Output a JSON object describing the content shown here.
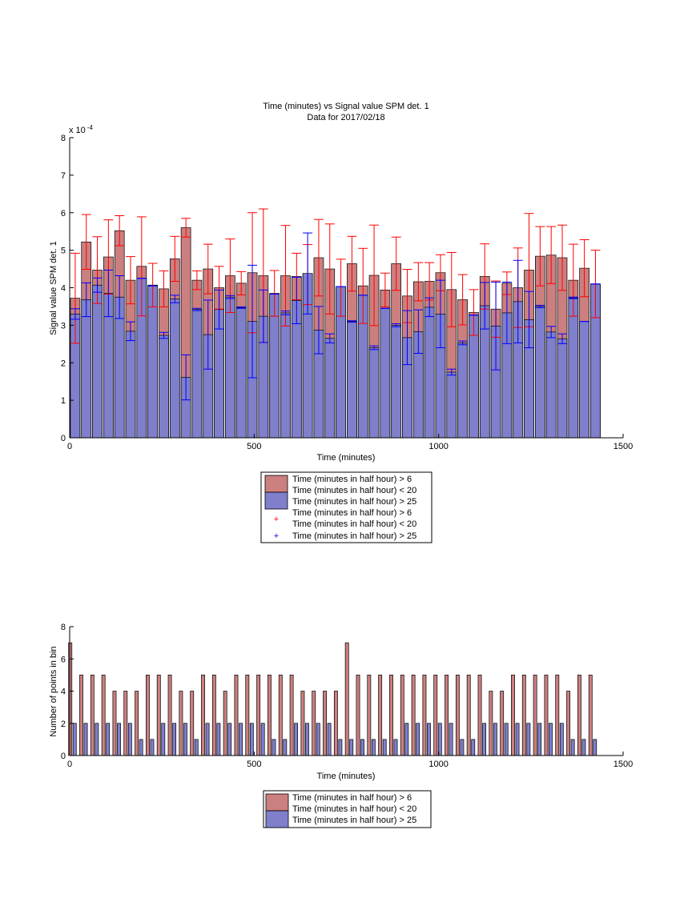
{
  "colors": {
    "red_bar": "#cc7f7f",
    "blue_bar": "#7f7fcc",
    "red_err": "#ff0000",
    "blue_err": "#0000ff"
  },
  "top": {
    "title1": "Time (minutes) vs Signal value SPM det. 1",
    "title2": "Data for 2017/02/18",
    "ylabel": "Signal value SPM det. 1",
    "xlabel": "Time (minutes)",
    "exponent": "x 10",
    "exponent_power": "-4",
    "xticks": [
      "0",
      "500",
      "1000",
      "1500"
    ],
    "yticks": [
      "0",
      "1",
      "2",
      "3",
      "4",
      "5",
      "6",
      "7",
      "8"
    ],
    "legend": [
      "Time (minutes in half hour) > 6",
      "Time (minutes in half hour) < 20",
      "Time (minutes in half hour) > 25",
      "Time (minutes in half hour) > 6",
      "Time (minutes in half hour) < 20",
      "Time (minutes in half hour) > 25"
    ]
  },
  "bottom": {
    "ylabel": "Number of points in bin",
    "xlabel": "Time (minutes)",
    "xticks": [
      "0",
      "500",
      "1000",
      "1500"
    ],
    "yticks": [
      "0",
      "2",
      "4",
      "6",
      "8"
    ],
    "legend": [
      "Time (minutes in half hour) > 6",
      "Time (minutes in half hour) < 20",
      "Time (minutes in half hour) > 25"
    ]
  },
  "chart_data": [
    {
      "type": "bar",
      "title": "Time (minutes) vs Signal value SPM det. 1",
      "subtitle": "Data for 2017/02/18",
      "xlabel": "Time (minutes)",
      "ylabel": "Signal value SPM det. 1",
      "y_scale_note": "x 10^-4",
      "xlim": [
        0,
        1500
      ],
      "ylim": [
        0,
        8
      ],
      "grid": false,
      "legend_position": "below",
      "x": [
        15,
        45,
        75,
        105,
        135,
        165,
        195,
        225,
        255,
        285,
        315,
        345,
        375,
        405,
        435,
        465,
        495,
        525,
        555,
        585,
        615,
        645,
        675,
        705,
        735,
        765,
        795,
        825,
        855,
        885,
        915,
        945,
        975,
        1005,
        1035,
        1065,
        1095,
        1125,
        1155,
        1185,
        1215,
        1245,
        1275,
        1305,
        1335,
        1365,
        1395,
        1425
      ],
      "series": [
        {
          "values": [
            3.72,
            5.22,
            4.47,
            4.82,
            5.52,
            4.2,
            4.57,
            4.07,
            3.97,
            4.77,
            5.6,
            4.2,
            4.5,
            4.0,
            4.32,
            4.12,
            4.4,
            4.32,
            3.85,
            4.32,
            4.3,
            4.35,
            4.8,
            4.5,
            4.0,
            4.64,
            4.05,
            4.33,
            3.94,
            4.64,
            3.78,
            4.16,
            4.17,
            4.4,
            3.95,
            3.68,
            3.34,
            4.3,
            3.43,
            4.12,
            4.0,
            4.47,
            4.84,
            4.87,
            4.8,
            4.2,
            4.52,
            4.1
          ],
          "errors": [
            1.2,
            0.73,
            0.89,
            0.99,
            0.4,
            0.63,
            1.32,
            0.58,
            0.48,
            0.6,
            0.25,
            0.25,
            0.66,
            0.57,
            0.98,
            0.31,
            1.6,
            1.78,
            0.61,
            1.34,
            0.62,
            0.8,
            1.02,
            1.2,
            0.76,
            0.73,
            1.0,
            1.34,
            0.45,
            0.71,
            0.71,
            0.51,
            0.5,
            0.48,
            0.99,
            0.67,
            0.61,
            0.87,
            0.75,
            0.3,
            1.06,
            1.51,
            0.79,
            0.76,
            0.87,
            0.96,
            0.76,
            0.9
          ]
        },
        {
          "values": [
            3.3,
            3.68,
            4.07,
            3.85,
            3.75,
            2.84,
            4.25,
            4.05,
            2.73,
            3.7,
            1.61,
            3.42,
            2.75,
            3.42,
            3.75,
            3.47,
            3.1,
            3.24,
            3.83,
            3.33,
            3.66,
            4.38,
            2.87,
            2.65,
            4.03,
            3.1,
            3.8,
            2.4,
            3.45,
            3.0,
            2.67,
            2.83,
            3.48,
            3.3,
            1.75,
            2.53,
            3.27,
            3.52,
            2.98,
            3.33,
            3.63,
            3.15,
            3.5,
            2.82,
            2.64,
            3.73,
            3.1,
            4.1
          ],
          "errors": [
            0.14,
            0.45,
            0.19,
            0.62,
            0.57,
            0.25,
            0.0,
            0.0,
            0.08,
            0.1,
            0.6,
            0.03,
            0.92,
            0.52,
            0.04,
            0.02,
            1.5,
            0.7,
            0.0,
            0.05,
            0.62,
            1.08,
            0.63,
            0.12,
            0.0,
            0.02,
            0.0,
            0.05,
            0.0,
            0.04,
            0.72,
            0.58,
            0.25,
            0.9,
            0.08,
            0.05,
            0.0,
            0.62,
            1.17,
            0.82,
            1.1,
            0.75,
            0.03,
            0.15,
            0.13,
            0.02,
            0.0,
            0.0
          ]
        }
      ]
    },
    {
      "type": "bar",
      "xlabel": "Time (minutes)",
      "ylabel": "Number of points in bin",
      "xlim": [
        0,
        1500
      ],
      "ylim": [
        0,
        8
      ],
      "grid": false,
      "legend_position": "below",
      "x": [
        15,
        45,
        75,
        105,
        135,
        165,
        195,
        225,
        255,
        285,
        315,
        345,
        375,
        405,
        435,
        465,
        495,
        525,
        555,
        585,
        615,
        645,
        675,
        705,
        735,
        765,
        795,
        825,
        855,
        885,
        915,
        945,
        975,
        1005,
        1035,
        1065,
        1095,
        1125,
        1155,
        1185,
        1215,
        1245,
        1275,
        1305,
        1335,
        1365,
        1395,
        1425
      ],
      "series": [
        {
          "values": [
            7,
            5,
            5,
            5,
            4,
            4,
            4,
            5,
            5,
            5,
            4,
            4,
            5,
            5,
            4,
            5,
            5,
            5,
            5,
            5,
            5,
            4,
            4,
            4,
            4,
            7,
            5,
            5,
            5,
            5,
            5,
            5,
            5,
            5,
            5,
            5,
            5,
            5,
            4,
            4,
            5,
            5,
            5,
            5,
            5,
            4,
            5,
            5
          ]
        },
        {
          "values": [
            2,
            2,
            2,
            2,
            2,
            2,
            1,
            1,
            2,
            2,
            2,
            1,
            2,
            2,
            2,
            2,
            2,
            2,
            1,
            1,
            2,
            2,
            2,
            2,
            1,
            1,
            1,
            1,
            1,
            1,
            2,
            2,
            2,
            2,
            2,
            1,
            1,
            2,
            2,
            2,
            2,
            2,
            2,
            2,
            2,
            1,
            1,
            1
          ]
        }
      ]
    }
  ]
}
